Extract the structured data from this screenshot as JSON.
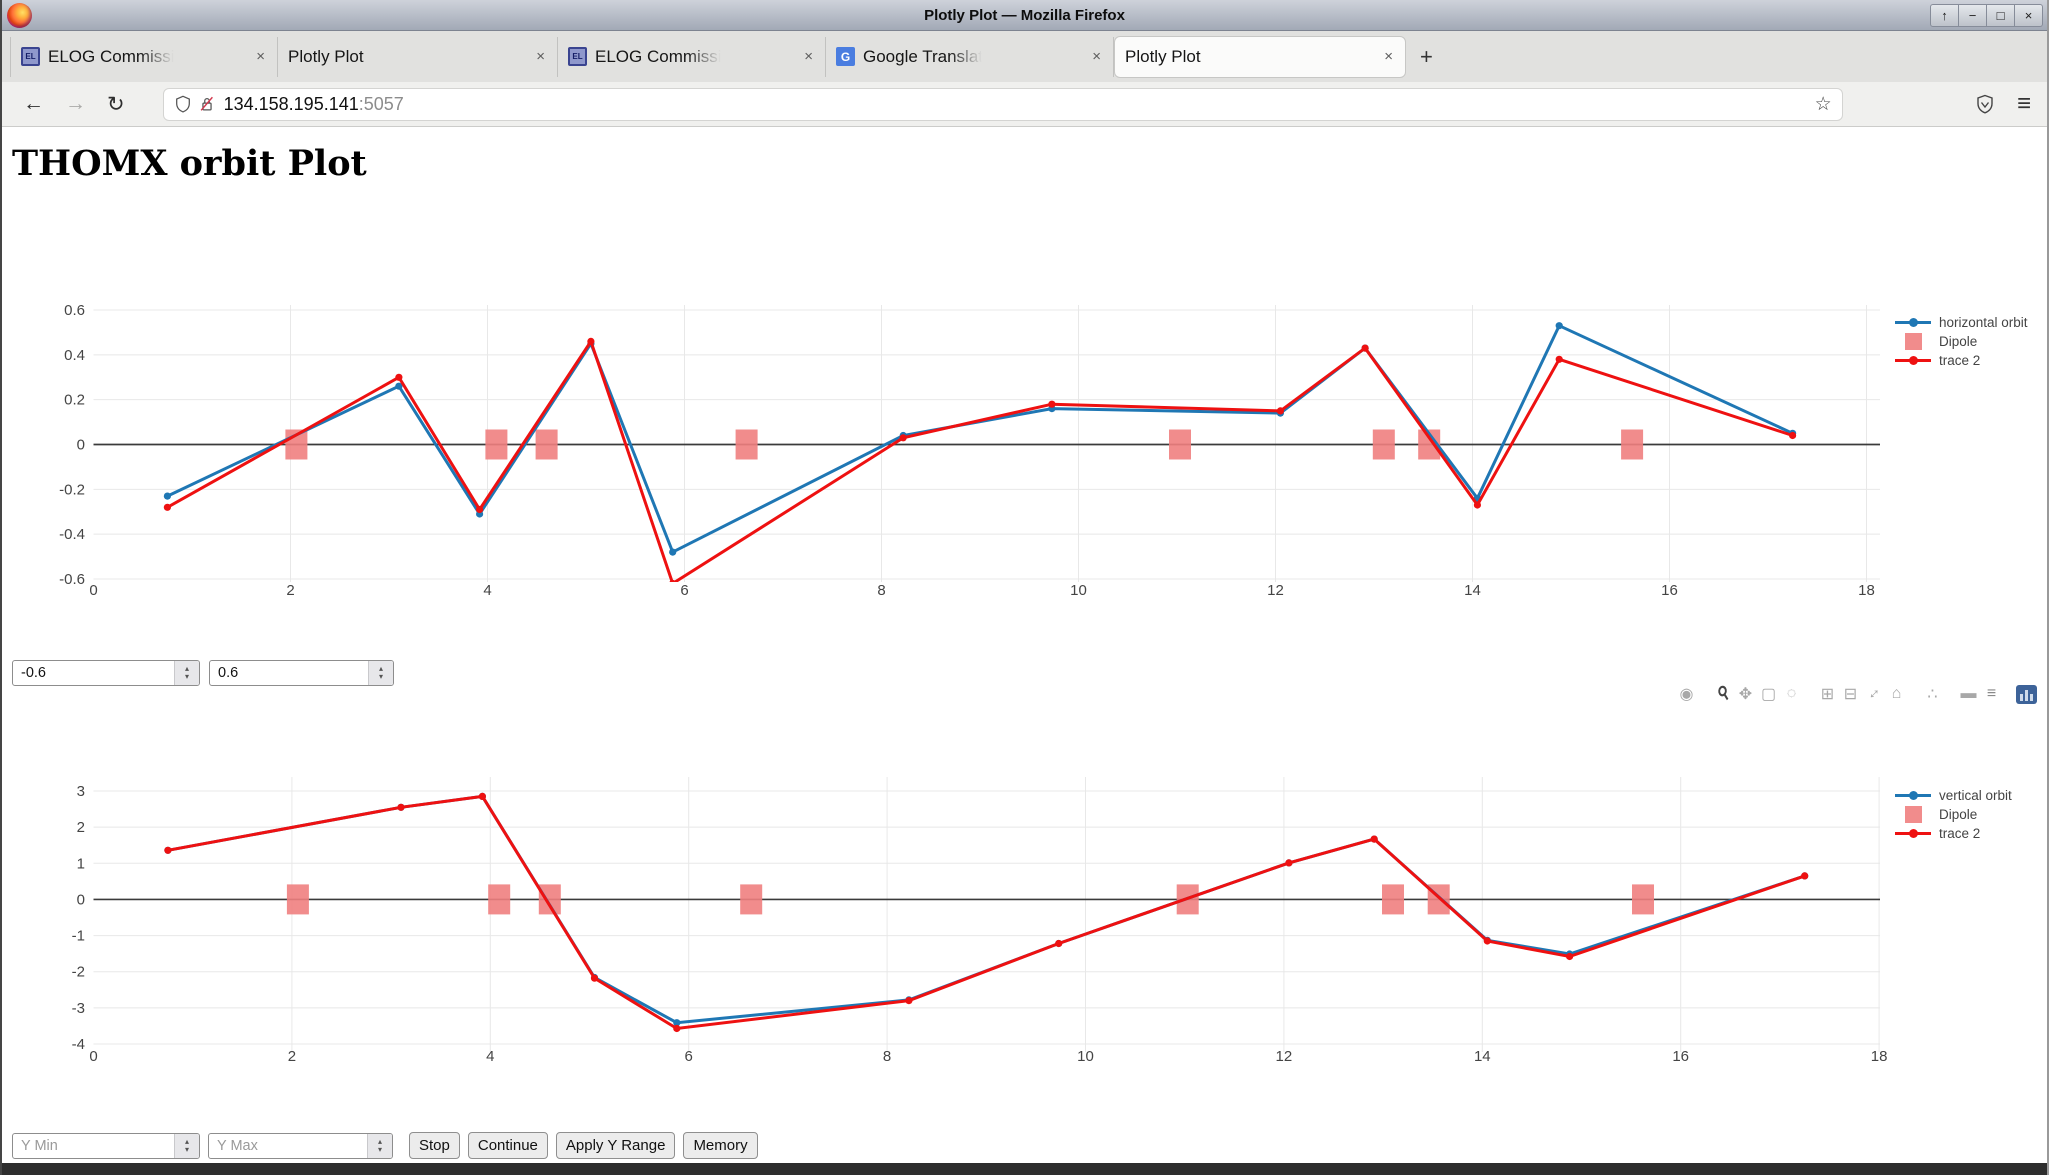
{
  "window": {
    "title": "Plotly Plot — Mozilla Firefox",
    "controls": [
      {
        "name": "shade",
        "glyph": "↑"
      },
      {
        "name": "minimize",
        "glyph": "−"
      },
      {
        "name": "maximize",
        "glyph": "□"
      },
      {
        "name": "close",
        "glyph": "×"
      }
    ]
  },
  "tabs": [
    {
      "label": "ELOG Commissi",
      "favicon_text": "EL",
      "close": "×"
    },
    {
      "label": "Plotly Plot",
      "close": "×"
    },
    {
      "label": "ELOG Commissi",
      "favicon_text": "EL",
      "close": "×"
    },
    {
      "label": "Google Translat",
      "favicon_text": "G",
      "close": "×"
    },
    {
      "label": "Plotly Plot",
      "close": "×",
      "active": true
    }
  ],
  "new_tab_glyph": "+",
  "navbar": {
    "back_glyph": "←",
    "forward_glyph": "→",
    "reload_glyph": "↻",
    "url_host": "134.158.195.141",
    "url_port": ":5057",
    "star_glyph": "☆",
    "menu_glyph": "≡"
  },
  "page": {
    "heading": "THOMX orbit Plot"
  },
  "range_inputs": {
    "min_value": "-0.6",
    "max_value": "0.6"
  },
  "modebar": {
    "icons": [
      {
        "name": "camera",
        "glyph": "◉"
      },
      {
        "name": "zoom",
        "glyph": "⚲"
      },
      {
        "name": "pan",
        "glyph": "✥"
      },
      {
        "name": "box-select",
        "glyph": "▢"
      },
      {
        "name": "lasso-select",
        "glyph": "◌"
      },
      {
        "name": "zoom-in",
        "glyph": "⊞"
      },
      {
        "name": "zoom-out",
        "glyph": "⊟"
      },
      {
        "name": "autoscale",
        "glyph": "↕"
      },
      {
        "name": "reset-axes",
        "glyph": "⌂"
      },
      {
        "name": "spikelines",
        "glyph": "∴"
      },
      {
        "name": "hover-closest",
        "glyph": "▬"
      },
      {
        "name": "hover-compare",
        "glyph": "≡"
      }
    ]
  },
  "controls": {
    "ymin_placeholder": "Y Min",
    "ymax_placeholder": "Y Max",
    "stop_label": "Stop",
    "continue_label": "Continue",
    "apply_label": "Apply Y Range",
    "memory_label": "Memory"
  },
  "chart_data": [
    {
      "type": "line",
      "title": "",
      "xlabel": "",
      "ylabel": "",
      "xlim": [
        0,
        18.2
      ],
      "ylim": [
        -0.6,
        0.6
      ],
      "grid": true,
      "legend_position": "top-right",
      "x_ticks": [
        0,
        2,
        4,
        6,
        8,
        10,
        12,
        14,
        16,
        18
      ],
      "y_ticks": [
        0.6,
        0.4,
        0.2,
        0,
        -0.2,
        -0.4,
        -0.6
      ],
      "x": [
        0.75,
        3.1,
        3.92,
        5.05,
        5.88,
        8.22,
        9.73,
        12.05,
        12.91,
        14.05,
        14.88,
        17.25
      ],
      "series": [
        {
          "name": "horizontal orbit",
          "color": "#1f77b4",
          "values": [
            -0.23,
            0.26,
            -0.31,
            0.45,
            -0.48,
            0.04,
            0.16,
            0.14,
            0.43,
            -0.24,
            0.53,
            0.05
          ]
        },
        {
          "name": "trace 2",
          "color": "#ee1111",
          "values": [
            -0.28,
            0.3,
            -0.29,
            0.46,
            -0.62,
            0.03,
            0.18,
            0.15,
            0.43,
            -0.27,
            0.38,
            0.04
          ]
        }
      ],
      "dipole": {
        "name": "Dipole",
        "color": "#f08080",
        "marker": "square",
        "y": 0,
        "x": [
          2.06,
          4.09,
          4.6,
          6.63,
          11.03,
          13.1,
          13.56,
          15.62
        ]
      },
      "legend": [
        "horizontal orbit",
        "Dipole",
        "trace 2"
      ]
    },
    {
      "type": "line",
      "title": "",
      "xlabel": "",
      "ylabel": "",
      "xlim": [
        0,
        18.2
      ],
      "ylim": [
        -4.2,
        3.4
      ],
      "grid": true,
      "legend_position": "top-right",
      "x_ticks": [
        0,
        2,
        4,
        6,
        8,
        10,
        12,
        14,
        16,
        18
      ],
      "y_ticks": [
        3,
        2,
        1,
        0,
        -1,
        -2,
        -3,
        -4
      ],
      "x": [
        0.75,
        3.1,
        3.92,
        5.05,
        5.88,
        8.22,
        9.73,
        12.05,
        12.91,
        14.05,
        14.88,
        17.25
      ],
      "series": [
        {
          "name": "vertical orbit",
          "color": "#1f77b4",
          "values": [
            1.36,
            2.55,
            2.85,
            -2.16,
            -3.41,
            -2.78,
            -1.22,
            1.01,
            1.67,
            -1.13,
            -1.51,
            0.65
          ]
        },
        {
          "name": "trace 2",
          "color": "#ee1111",
          "values": [
            1.36,
            2.55,
            2.85,
            -2.18,
            -3.57,
            -2.8,
            -1.22,
            1.01,
            1.67,
            -1.15,
            -1.58,
            0.65
          ]
        }
      ],
      "dipole": {
        "name": "Dipole",
        "color": "#f08080",
        "marker": "square",
        "y": 0,
        "x": [
          2.06,
          4.09,
          4.6,
          6.63,
          11.03,
          13.1,
          13.56,
          15.62
        ]
      },
      "legend": [
        "vertical orbit",
        "Dipole",
        "trace 2"
      ]
    }
  ]
}
